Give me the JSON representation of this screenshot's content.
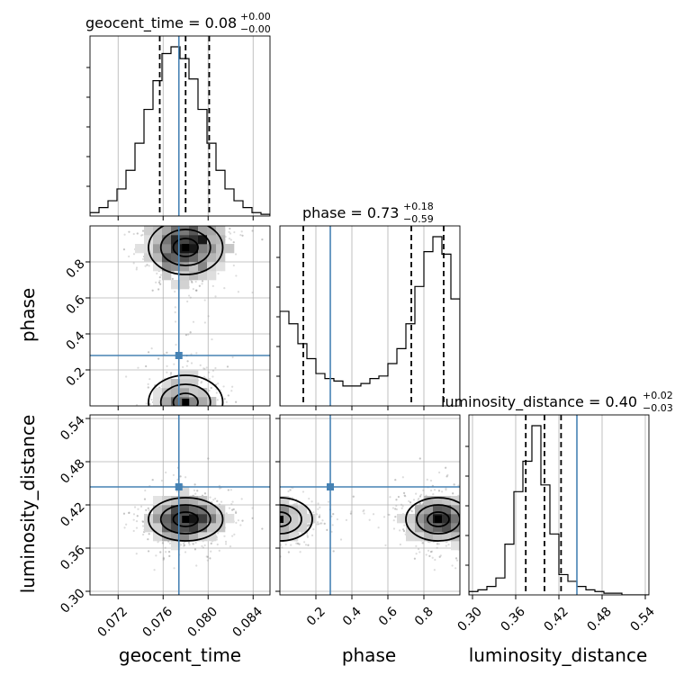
{
  "chart_data": {
    "type": "corner",
    "parameters": [
      "geocent_time",
      "phase",
      "luminosity_distance"
    ],
    "truths": [
      0.0774,
      0.28,
      0.445
    ],
    "truth_color": "#4682b4",
    "ranges": [
      [
        0.0695,
        0.0855
      ],
      [
        0.0,
        1.0
      ],
      [
        0.295,
        0.545
      ]
    ],
    "ticks": [
      [
        "0.072",
        "0.076",
        "0.080",
        "0.084"
      ],
      [
        "0.2",
        "0.4",
        "0.6",
        "0.8"
      ],
      [
        "0.30",
        "0.36",
        "0.42",
        "0.48",
        "0.54"
      ]
    ],
    "titles": [
      {
        "base": "geocent_time = 0.08",
        "plus": "+0.00",
        "minus": "−0.00"
      },
      {
        "base": "phase = 0.73",
        "plus": "+0.18",
        "minus": "−0.59"
      },
      {
        "base": "luminosity_distance = 0.40",
        "plus": "+0.02",
        "minus": "−0.03"
      }
    ],
    "quantiles": [
      [
        0.0757,
        0.078,
        0.0801
      ],
      [
        0.13,
        0.73,
        0.91
      ],
      [
        0.374,
        0.4,
        0.423
      ]
    ],
    "histograms": [
      {
        "bin_start": 0.0695,
        "bin_width": 0.0008,
        "counts": [
          2,
          5,
          9,
          16,
          27,
          43,
          63,
          80,
          96,
          100,
          93,
          81,
          63,
          43,
          27,
          16,
          9,
          5,
          2,
          1
        ]
      },
      {
        "bin_start": 0.0,
        "bin_width": 0.05,
        "counts": [
          38,
          33,
          25,
          19,
          13,
          11,
          10,
          8,
          8,
          9,
          11,
          12,
          17,
          23,
          33,
          48,
          62,
          68,
          61,
          43
        ]
      },
      {
        "bin_start": 0.295,
        "bin_width": 0.0125,
        "counts": [
          2,
          3,
          5,
          10,
          30,
          61,
          79,
          100,
          65,
          36,
          12,
          8,
          5,
          3,
          2,
          1,
          1,
          0,
          0,
          0
        ]
      }
    ],
    "grid": true
  }
}
